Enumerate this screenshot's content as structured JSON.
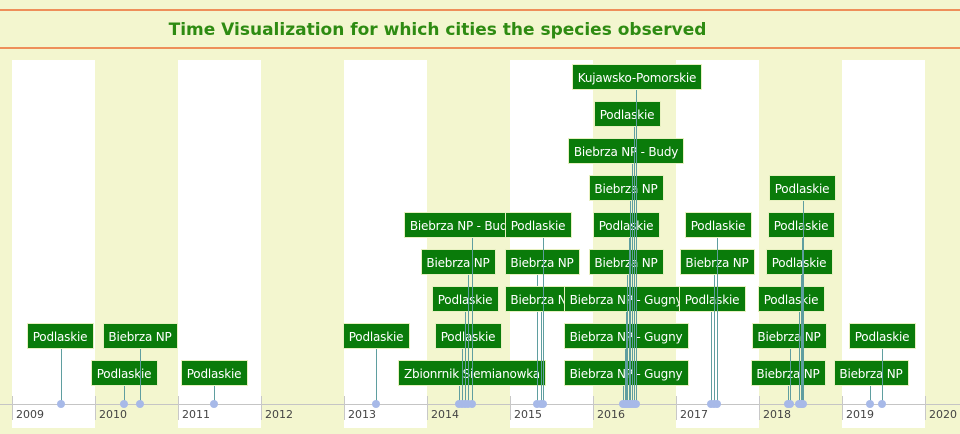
{
  "title": "Time Visualization for which cities the species observed",
  "colors": {
    "background": "#f3f6cf",
    "band_white": "#ffffff",
    "title": "#2e8b12",
    "rule": "#ee8f5a",
    "event_box": "#0a7b0a",
    "event_line": "#5f9ea0",
    "event_dot": "#a7b9e8"
  },
  "years": [
    "2009",
    "2010",
    "2011",
    "2012",
    "2013",
    "2014",
    "2015",
    "2016",
    "2017",
    "2018",
    "2019",
    "2020"
  ],
  "events": [
    {
      "label": "Podlaskie",
      "date": "2009-07"
    },
    {
      "label": "Podlaskie",
      "date": "2010-03"
    },
    {
      "label": "Biebrza NP",
      "date": "2010-05"
    },
    {
      "label": "Podlaskie",
      "date": "2011-04"
    },
    {
      "label": "Podlaskie",
      "date": "2013-04"
    },
    {
      "label": "Zbionrnik Siemianowka",
      "date": "2014-03"
    },
    {
      "label": "Podlaskie",
      "date": "2014-04"
    },
    {
      "label": "Podlaskie",
      "date": "2014-04"
    },
    {
      "label": "Biebrza NP",
      "date": "2014-04"
    },
    {
      "label": "Biebrza NP - Budy",
      "date": "2014-05"
    },
    {
      "label": "Biebrza NP",
      "date": "2015-02"
    },
    {
      "label": "Biebrza NP",
      "date": "2015-02"
    },
    {
      "label": "Podlaskie",
      "date": "2015-03"
    },
    {
      "label": "Biebrza NP - Gugny",
      "date": "2016-03"
    },
    {
      "label": "Biebrza NP - Gugny",
      "date": "2016-03"
    },
    {
      "label": "Biebrza NP - Gugny",
      "date": "2016-03"
    },
    {
      "label": "Biebrza NP",
      "date": "2016-03"
    },
    {
      "label": "Podlaskie",
      "date": "2016-03"
    },
    {
      "label": "Biebrza NP",
      "date": "2016-03"
    },
    {
      "label": "Biebrza NP - Budy",
      "date": "2016-04"
    },
    {
      "label": "Podlaskie",
      "date": "2016-04"
    },
    {
      "label": "Kujawsko-Pomorskie",
      "date": "2016-05"
    },
    {
      "label": "Podlaskie",
      "date": "2017-04"
    },
    {
      "label": "Biebrza NP",
      "date": "2017-04"
    },
    {
      "label": "Podlaskie",
      "date": "2017-05"
    },
    {
      "label": "Biebrza NP",
      "date": "2018-02"
    },
    {
      "label": "Biebrza NP",
      "date": "2018-02"
    },
    {
      "label": "Podlaskie",
      "date": "2018-03"
    },
    {
      "label": "Podlaskie",
      "date": "2018-04"
    },
    {
      "label": "Podlaskie",
      "date": "2018-04"
    },
    {
      "label": "Podlaskie",
      "date": "2018-04"
    },
    {
      "label": "Biebrza NP",
      "date": "2019-02"
    },
    {
      "label": "Podlaskie",
      "date": "2019-04"
    }
  ]
}
